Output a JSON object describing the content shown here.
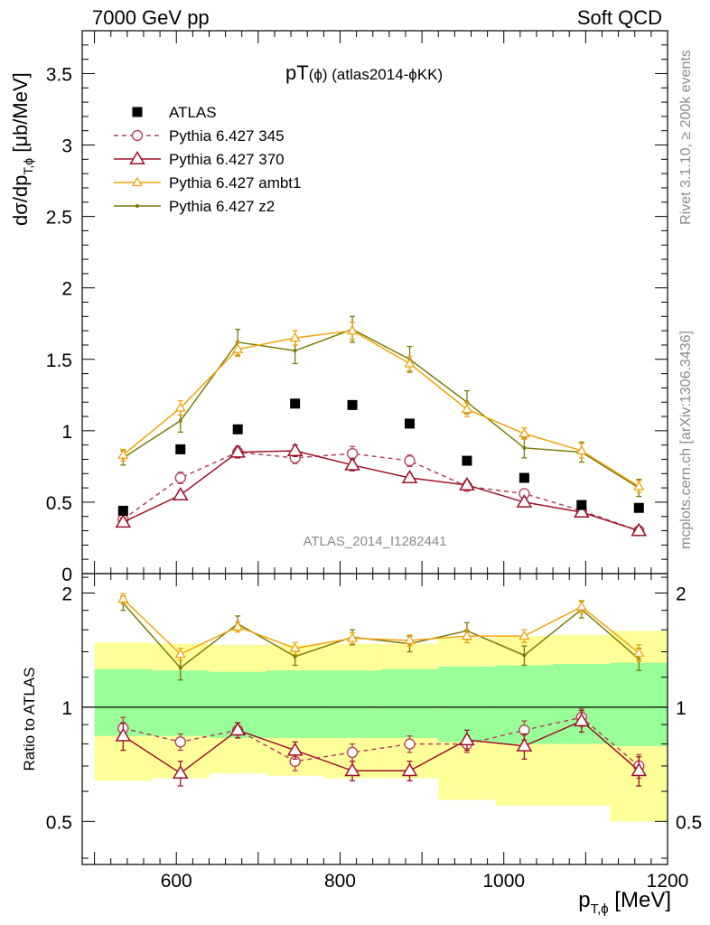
{
  "header": {
    "left": "7000 GeV pp",
    "right": "Soft QCD"
  },
  "side_text": {
    "rivet": "Rivet 3.1.10, ≥ 200k events",
    "mcplots": "mcplots.cern.ch [arXiv:1306.3436]"
  },
  "chart_data": [
    {
      "type": "scatter",
      "panel": "main",
      "title": "pT(ϕ) (atlas2014-ϕKK)",
      "analysis_label": "ATLAS_2014_I1282441",
      "xlabel": "p_T,ϕ [MeV]",
      "ylabel": "dσ/dp_T,ϕ [μb/MeV]",
      "xlim": [
        485,
        1200
      ],
      "ylim": [
        0,
        3.8
      ],
      "yticks": [
        0,
        0.5,
        1,
        1.5,
        2,
        2.5,
        3,
        3.5
      ],
      "ytick_labels": [
        "0",
        "0.5",
        "1",
        "1.5",
        "2",
        "2.5",
        "3",
        "3.5"
      ],
      "legend_position": "top-left",
      "x": [
        535,
        605,
        675,
        745,
        815,
        885,
        955,
        1025,
        1095,
        1165
      ],
      "series": [
        {
          "name": "ATLAS",
          "color": "#000000",
          "marker": "square",
          "line": "none",
          "values": [
            0.44,
            0.87,
            1.01,
            1.19,
            1.18,
            1.05,
            0.79,
            0.67,
            0.48,
            0.46
          ]
        },
        {
          "name": "Pythia 6.427 345",
          "color": "#b2455a",
          "marker": "circle-open",
          "line": "dashed",
          "values": [
            0.38,
            0.67,
            0.85,
            0.81,
            0.84,
            0.79,
            0.61,
            0.56,
            0.44,
            0.3
          ],
          "errors": [
            0.02,
            0.04,
            0.04,
            0.04,
            0.05,
            0.04,
            0.03,
            0.03,
            0.03,
            0.02
          ]
        },
        {
          "name": "Pythia 6.427 370",
          "color": "#9e1028",
          "marker": "triangle-open",
          "line": "solid",
          "values": [
            0.36,
            0.55,
            0.85,
            0.86,
            0.76,
            0.67,
            0.62,
            0.5,
            0.43,
            0.3
          ],
          "errors": [
            0.03,
            0.03,
            0.04,
            0.04,
            0.04,
            0.03,
            0.03,
            0.03,
            0.03,
            0.02
          ]
        },
        {
          "name": "Pythia 6.427 ambt1",
          "color": "#f0a30a",
          "marker": "triangle-open-small",
          "line": "solid",
          "values": [
            0.83,
            1.16,
            1.57,
            1.65,
            1.7,
            1.47,
            1.15,
            0.98,
            0.86,
            0.61
          ],
          "errors": [
            0.04,
            0.05,
            0.05,
            0.05,
            0.06,
            0.05,
            0.05,
            0.04,
            0.05,
            0.04
          ]
        },
        {
          "name": "Pythia 6.427 z2",
          "color": "#7a7a0a",
          "marker": "dot",
          "line": "solid",
          "values": [
            0.81,
            1.07,
            1.62,
            1.56,
            1.71,
            1.5,
            1.2,
            0.88,
            0.85,
            0.6
          ],
          "errors": [
            0.05,
            0.08,
            0.09,
            0.09,
            0.09,
            0.09,
            0.08,
            0.07,
            0.07,
            0.06
          ]
        }
      ]
    },
    {
      "type": "scatter",
      "panel": "ratio",
      "xlabel": "p_T,ϕ [MeV]",
      "ylabel": "Ratio to ATLAS",
      "xlim": [
        485,
        1200
      ],
      "ylim": [
        0.385,
        2.25
      ],
      "yticks": [
        0.5,
        1,
        2
      ],
      "ytick_labels": [
        "0.5",
        "1",
        "2"
      ],
      "xticks": [
        600,
        800,
        1000,
        1200
      ],
      "xtick_labels": [
        "600",
        "800",
        "1000",
        "1200"
      ],
      "x": [
        535,
        605,
        675,
        745,
        815,
        885,
        955,
        1025,
        1095,
        1165
      ],
      "bands": {
        "bin_edges": [
          500,
          570,
          640,
          710,
          780,
          850,
          920,
          990,
          1060,
          1130,
          1200
        ],
        "yellow_low": [
          0.64,
          0.65,
          0.67,
          0.66,
          0.65,
          0.65,
          0.57,
          0.55,
          0.55,
          0.5
        ],
        "yellow_high": [
          1.48,
          1.47,
          1.46,
          1.46,
          1.47,
          1.47,
          1.52,
          1.54,
          1.55,
          1.59
        ],
        "green_low": [
          0.84,
          0.84,
          0.83,
          0.83,
          0.83,
          0.83,
          0.81,
          0.8,
          0.8,
          0.79
        ],
        "green_high": [
          1.26,
          1.25,
          1.24,
          1.25,
          1.25,
          1.26,
          1.28,
          1.29,
          1.3,
          1.31
        ]
      },
      "series": [
        {
          "name": "Pythia 6.427 345",
          "color": "#b2455a",
          "marker": "circle-open",
          "line": "dashed",
          "values": [
            0.88,
            0.81,
            0.87,
            0.72,
            0.76,
            0.8,
            0.8,
            0.87,
            0.94,
            0.7
          ],
          "errors": [
            0.06,
            0.04,
            0.04,
            0.04,
            0.04,
            0.04,
            0.04,
            0.05,
            0.05,
            0.05
          ]
        },
        {
          "name": "Pythia 6.427 370",
          "color": "#9e1028",
          "marker": "triangle-open",
          "line": "solid",
          "values": [
            0.84,
            0.67,
            0.87,
            0.77,
            0.68,
            0.68,
            0.82,
            0.79,
            0.92,
            0.68
          ],
          "errors": [
            0.07,
            0.05,
            0.04,
            0.04,
            0.04,
            0.04,
            0.05,
            0.06,
            0.06,
            0.06
          ]
        },
        {
          "name": "Pythia 6.427 ambt1",
          "color": "#f0a30a",
          "marker": "triangle-open-small",
          "line": "solid",
          "values": [
            1.93,
            1.38,
            1.63,
            1.43,
            1.52,
            1.5,
            1.54,
            1.54,
            1.84,
            1.39
          ],
          "errors": [
            0.06,
            0.05,
            0.05,
            0.05,
            0.05,
            0.05,
            0.06,
            0.06,
            0.07,
            0.07
          ]
        },
        {
          "name": "Pythia 6.427 z2",
          "color": "#7a7a0a",
          "marker": "dot",
          "line": "solid",
          "values": [
            1.88,
            1.27,
            1.66,
            1.36,
            1.53,
            1.47,
            1.59,
            1.37,
            1.81,
            1.34
          ],
          "errors": [
            0.08,
            0.09,
            0.08,
            0.07,
            0.07,
            0.07,
            0.08,
            0.08,
            0.09,
            0.09
          ]
        }
      ]
    }
  ]
}
